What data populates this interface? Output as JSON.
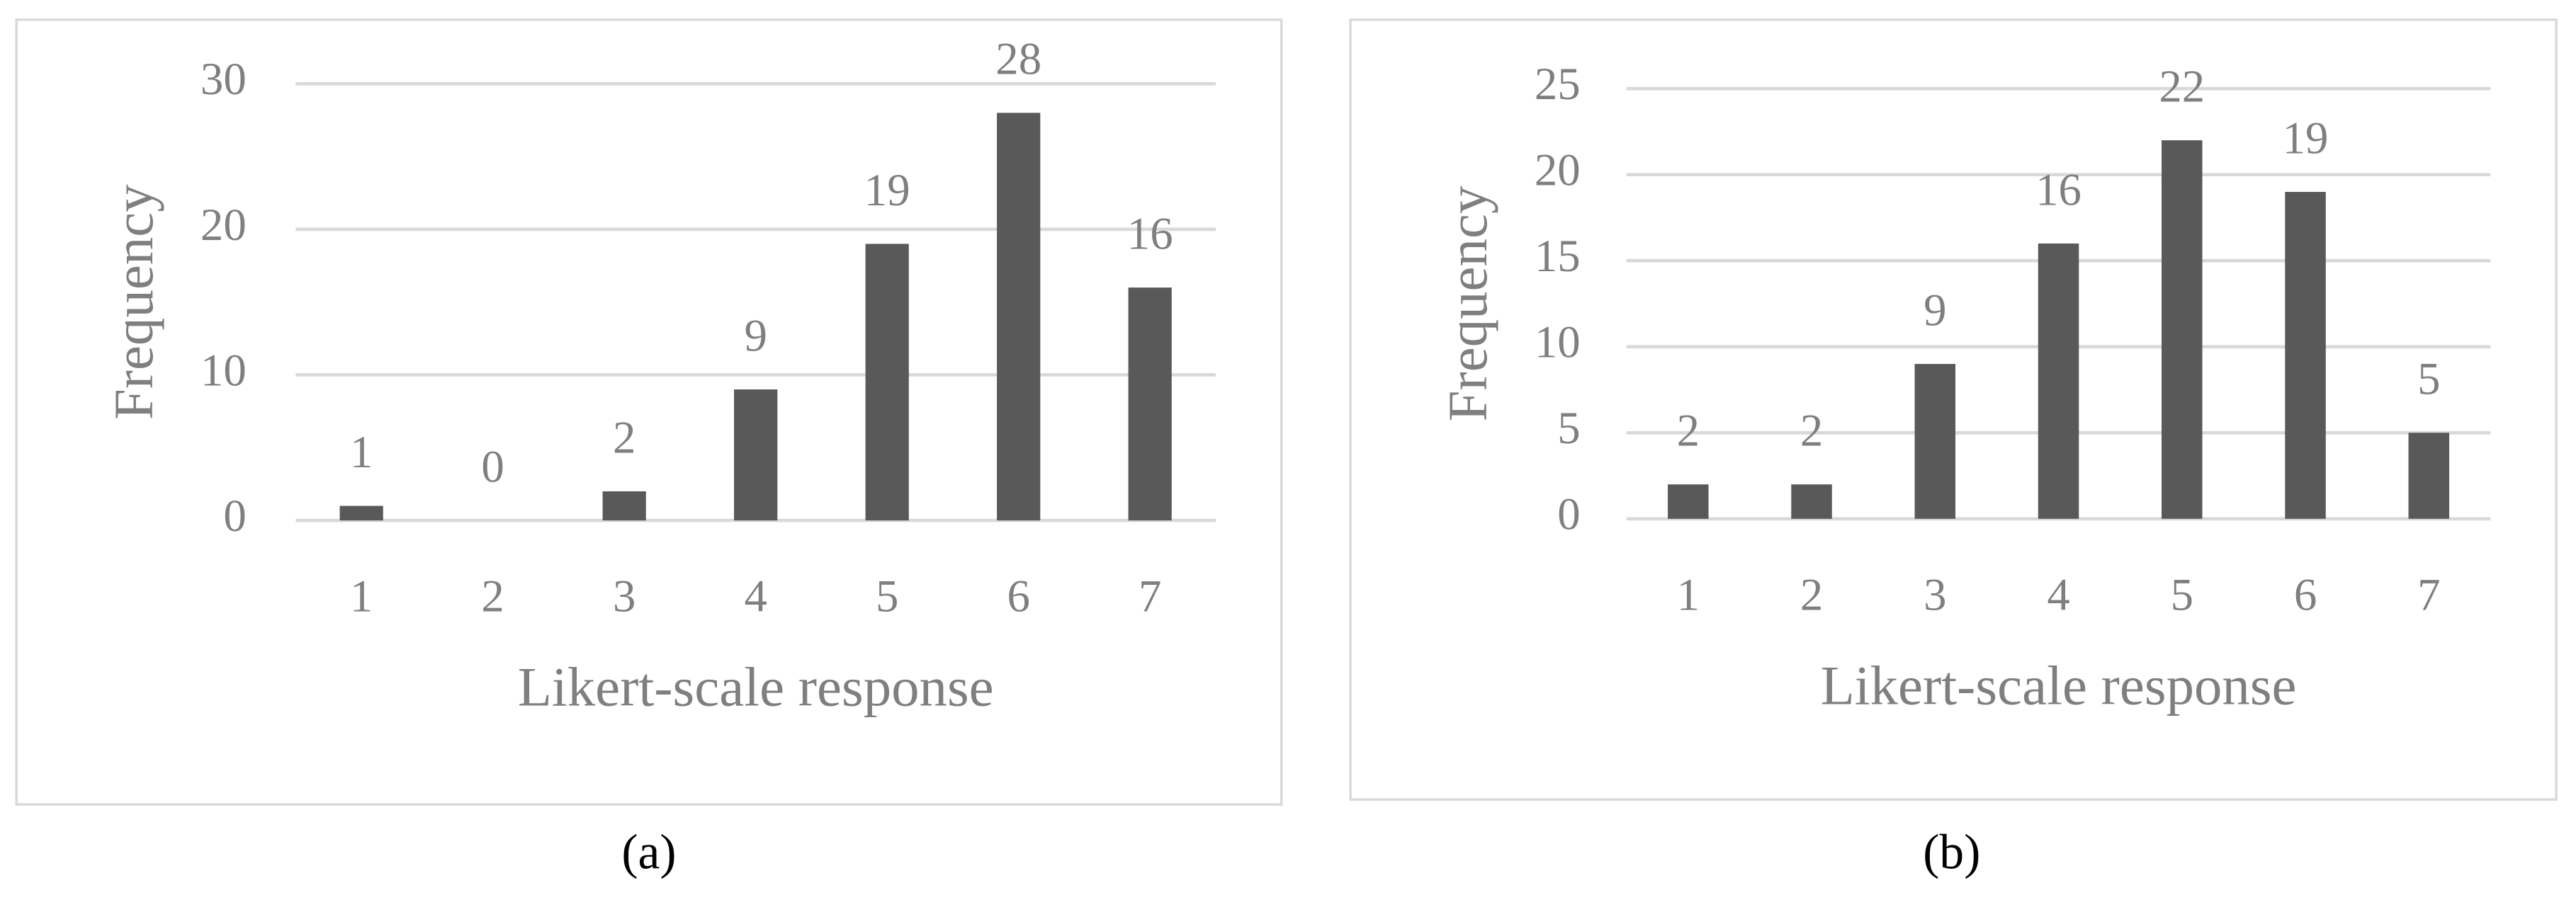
{
  "chart_data": [
    {
      "type": "bar",
      "caption": "(a)",
      "x_label": "Likert-scale response",
      "y_label": "Frequency",
      "categories": [
        "1",
        "2",
        "3",
        "4",
        "5",
        "6",
        "7"
      ],
      "values": [
        1,
        0,
        2,
        9,
        19,
        28,
        16
      ],
      "color": "#595959",
      "ylim": [
        0,
        30
      ],
      "yticks": [
        0,
        10,
        20,
        30
      ],
      "grid": true,
      "data_labels": true
    },
    {
      "type": "bar",
      "caption": "(b)",
      "x_label": "Likert-scale response",
      "y_label": "Frequency",
      "categories": [
        "1",
        "2",
        "3",
        "4",
        "5",
        "6",
        "7"
      ],
      "values": [
        2,
        2,
        9,
        16,
        22,
        19,
        5
      ],
      "color": "#595959",
      "ylim": [
        0,
        25
      ],
      "yticks": [
        0,
        5,
        10,
        15,
        20,
        25
      ],
      "grid": true,
      "data_labels": true
    }
  ]
}
